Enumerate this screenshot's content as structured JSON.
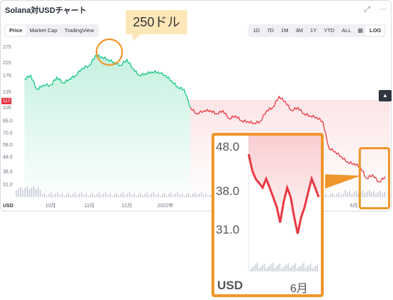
{
  "header": {
    "title": "Solana対USDチャート",
    "fullscreen_icon": "expand-icon",
    "menu_icon": "ellipsis-icon"
  },
  "tabs": [
    {
      "label": "Price",
      "active": true
    },
    {
      "label": "Market Cap",
      "active": false
    },
    {
      "label": "TradingView",
      "active": false
    }
  ],
  "ranges": [
    "1D",
    "7D",
    "1M",
    "3M",
    "1Y",
    "YTD",
    "ALL"
  ],
  "calendar_icon": "calendar-icon",
  "log_label": "LOG",
  "current_price": "117",
  "callout": "250ドル",
  "colors": {
    "up": "#16c784",
    "down": "#ea3943",
    "accent": "#f0962b"
  },
  "chart_data": {
    "type": "line",
    "title": "Solana対USDチャート",
    "scale": "log",
    "y_ticks": [
      275,
      215,
      175,
      135,
      105,
      85.0,
      70.0,
      58.0,
      48.0,
      38.0,
      31.0
    ],
    "currency_label": "USD",
    "x_ticks": [
      "10月",
      "11月",
      "12月",
      "2022年",
      "5月",
      "6月"
    ],
    "ylim": [
      27,
      300
    ],
    "grid": false,
    "series": [
      {
        "x": [
          "2021-09-10",
          "2021-09-15",
          "2021-09-20",
          "2021-09-25",
          "2021-10-01",
          "2021-10-06",
          "2021-10-11",
          "2021-10-16",
          "2021-10-21",
          "2021-10-26",
          "2021-11-01",
          "2021-11-06",
          "2021-11-11",
          "2021-11-16",
          "2021-11-21",
          "2021-11-26",
          "2021-12-01",
          "2021-12-06",
          "2021-12-11",
          "2021-12-16",
          "2021-12-21",
          "2021-12-26",
          "2022-01-01",
          "2022-01-06",
          "2022-01-11",
          "2022-01-16",
          "2022-01-21",
          "2022-01-26",
          "2022-02-01",
          "2022-02-06",
          "2022-02-11",
          "2022-02-16",
          "2022-02-21",
          "2022-02-26",
          "2022-03-03",
          "2022-03-08",
          "2022-03-13",
          "2022-03-18",
          "2022-03-23",
          "2022-03-28",
          "2022-04-02",
          "2022-04-07",
          "2022-04-12",
          "2022-04-17",
          "2022-04-22",
          "2022-04-27",
          "2022-05-02",
          "2022-05-07",
          "2022-05-12",
          "2022-05-17",
          "2022-05-22",
          "2022-05-27",
          "2022-06-01",
          "2022-06-06",
          "2022-06-11",
          "2022-06-16",
          "2022-06-21",
          "2022-06-26"
        ],
        "values": [
          165,
          175,
          140,
          150,
          150,
          170,
          155,
          165,
          175,
          195,
          205,
          240,
          235,
          225,
          215,
          205,
          225,
          195,
          175,
          180,
          185,
          185,
          175,
          160,
          145,
          140,
          105,
          95,
          100,
          100,
          95,
          100,
          88,
          92,
          85,
          84,
          82,
          84,
          100,
          105,
          125,
          115,
          100,
          105,
          95,
          92,
          90,
          84,
          55,
          52,
          48,
          44,
          43,
          41,
          34,
          36,
          32,
          35
        ]
      }
    ],
    "zoom_panel": {
      "y_ticks": [
        48.0,
        38.0,
        31.0
      ],
      "x_label": "6月",
      "currency_label": "USD",
      "values": [
        52,
        48,
        46,
        45,
        44,
        46,
        44,
        42,
        40,
        37,
        41,
        44,
        42,
        38,
        35,
        38,
        40,
        43,
        46,
        44,
        42
      ]
    }
  }
}
